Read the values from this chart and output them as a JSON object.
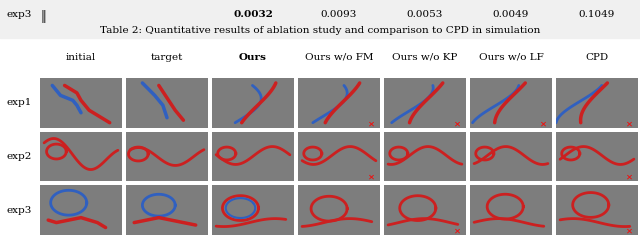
{
  "top_row_label": "exp3",
  "top_row_values_display": [
    "0.0032",
    "0.0093",
    "0.0053",
    "0.0049",
    "0.1049"
  ],
  "top_row_bold": [
    true,
    false,
    false,
    false,
    false
  ],
  "caption": "Table 2: Quantitative results of ablation study and comparison to CPD in simulation",
  "col_headers": [
    "initial",
    "target",
    "Ours",
    "Ours w/o FM",
    "Ours w/o KP",
    "Ours w/o LF",
    "CPD"
  ],
  "row_labels": [
    "exp1",
    "exp2",
    "exp3"
  ],
  "n_rows": 3,
  "n_cols": 7,
  "fail_marks": {
    "exp1": [
      3,
      4,
      5,
      6
    ],
    "exp2": [
      3,
      6
    ],
    "exp3": [
      4,
      6
    ]
  },
  "cell_bg": "#7d7d7d",
  "fig_bg": "#ffffff",
  "font_size_header": 7.5,
  "font_size_caption": 7.5,
  "font_size_row_label": 7.5,
  "font_size_top": 7.5
}
